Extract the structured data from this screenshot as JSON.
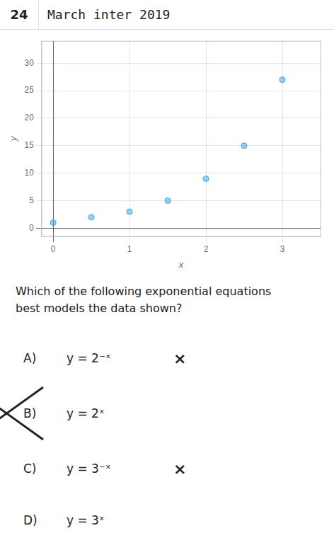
{
  "chart_data": {
    "type": "scatter",
    "title": "March inter 2019",
    "x": [
      0,
      0.5,
      1.0,
      1.5,
      2.0,
      2.5,
      3.0
    ],
    "values": [
      1,
      2,
      3,
      5,
      9,
      15,
      27
    ],
    "xlim": [
      -0.15,
      3.5
    ],
    "ylim": [
      -1.5,
      34
    ],
    "xticks": [
      0,
      1,
      2,
      3
    ],
    "yticks": [
      0,
      5,
      10,
      15,
      20,
      25,
      30
    ],
    "xlabel": "x",
    "ylabel": "y",
    "grid": true,
    "annotations": [
      {
        "text": "24"
      },
      {
        "text": "Which of the following exponential equations\nbest models the data shown?"
      },
      {
        "text": [
          "A)",
          "y = 2⁻ˣ",
          "×"
        ]
      },
      {
        "text": [
          "B)",
          "y = 2ˣ"
        ],
        "marker": "x"
      },
      {
        "text": [
          "C)",
          "y = 3⁻ˣ",
          "×"
        ]
      },
      {
        "text": [
          "D)",
          "y = 3ˣ"
        ]
      }
    ]
  }
}
